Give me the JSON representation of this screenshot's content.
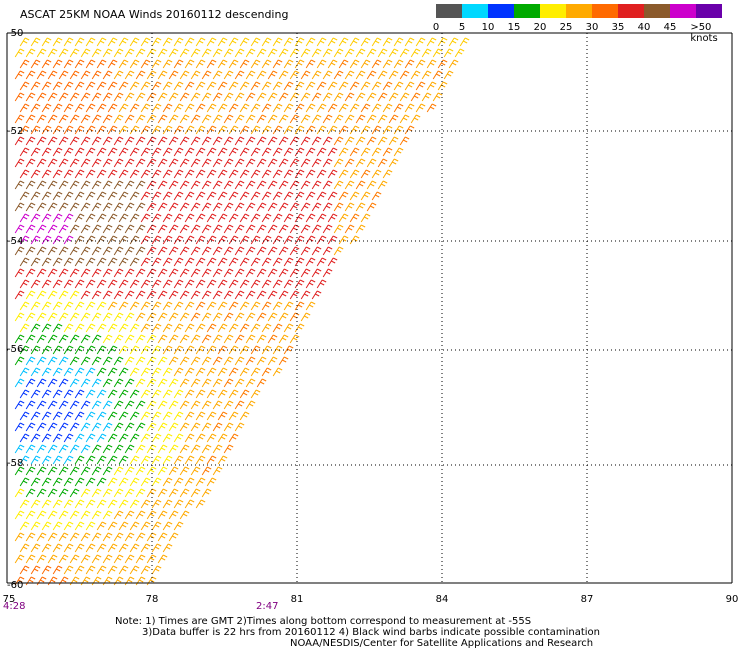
{
  "title": "ASCAT 25KM NOAA Winds 20160112 descending",
  "legend": {
    "labels": [
      "0",
      "5",
      "10",
      "15",
      "20",
      "25",
      "30",
      "35",
      "40",
      "45",
      ">50 knots"
    ],
    "colors": [
      "#555555",
      "#00d8ff",
      "#0033ff",
      "#00aa00",
      "#ffee00",
      "#ffaa00",
      "#ff6a00",
      "#e02020",
      "#8b5a2b",
      "#cc00cc",
      "#6a00aa"
    ]
  },
  "map": {
    "lat_labels": [
      "-50",
      "-52",
      "-54",
      "-56",
      "-58",
      "-60"
    ],
    "lon_labels": [
      "75",
      "78",
      "81",
      "84",
      "87",
      "90"
    ],
    "times": [
      "4:28",
      "2:47"
    ]
  },
  "notes": [
    "Note: 1) Times are GMT 2)Times along bottom correspond to measurement at -55S",
    "3)Data buffer is 22 hrs from 20160112 4) Black wind barbs indicate possible contamination",
    "NOAA/NESDIS/Center for Satellite Applications and Research"
  ]
}
